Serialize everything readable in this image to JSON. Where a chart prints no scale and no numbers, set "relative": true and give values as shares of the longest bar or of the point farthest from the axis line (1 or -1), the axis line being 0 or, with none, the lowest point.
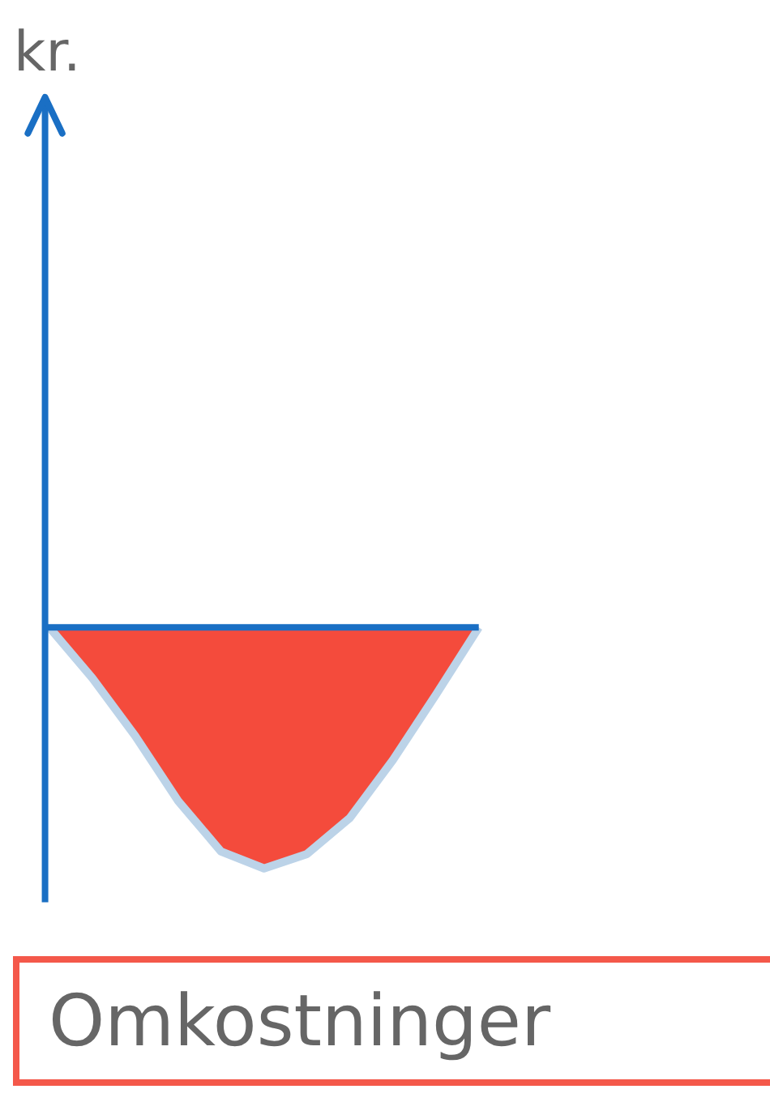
{
  "chart_data": {
    "type": "area",
    "relative": true,
    "categories": [
      null,
      null,
      null,
      null,
      null,
      null,
      null,
      null,
      null,
      null,
      null
    ],
    "series": [
      {
        "color": "#f44b3c",
        "values": [
          0,
          -0.21,
          -0.45,
          -0.72,
          -0.93,
          -1,
          -0.94,
          -0.79,
          -0.55,
          -0.28,
          0
        ]
      }
    ],
    "annotations": [
      "kr.",
      "Omkostninger"
    ]
  }
}
